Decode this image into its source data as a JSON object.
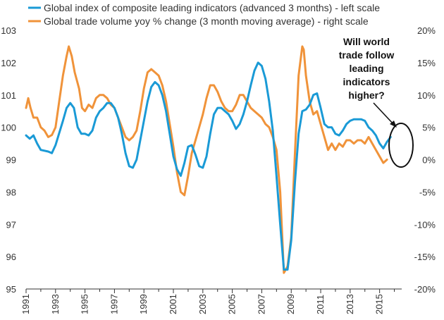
{
  "colors": {
    "leading_indicators": "#1a9ad6",
    "trade_volume": "#f0933a",
    "axis": "#333333"
  },
  "chart_data": {
    "type": "line",
    "title": "",
    "xlabel": "",
    "left_ylabel": "",
    "right_ylabel": "",
    "x_ticks": [
      "1991",
      "1993",
      "1995",
      "1997",
      "1999",
      "2001",
      "2003",
      "2005",
      "2007",
      "2009",
      "2011",
      "2013",
      "2015"
    ],
    "left_ticks": [
      "103",
      "102",
      "101",
      "100",
      "99",
      "98",
      "97",
      "96",
      "95"
    ],
    "right_ticks": [
      "20%",
      "15%",
      "10%",
      "5%",
      "0%",
      "-5%",
      "-10%",
      "-15%",
      "-20%"
    ],
    "xlim": [
      1991,
      2016.5
    ],
    "left_ylim": [
      95,
      103
    ],
    "right_ylim": [
      -20,
      20
    ],
    "grid": false,
    "legend_position": "top-left",
    "legend": [
      "Global index of composite leading indicators (advanced 3 months) - left scale",
      "Global trade volume yoy % change (3 month moving average) - right scale"
    ],
    "annotation": {
      "lines": [
        "Will world",
        "trade follow",
        "leading",
        "indicators",
        "higher?"
      ],
      "marker": "ellipse with arrow"
    },
    "series": [
      {
        "name": "Global index of composite leading indicators (advanced 3 months) - left scale",
        "axis": "left",
        "points": [
          [
            1991.0,
            99.75
          ],
          [
            1991.25,
            99.65
          ],
          [
            1991.5,
            99.75
          ],
          [
            1991.75,
            99.5
          ],
          [
            1992.0,
            99.3
          ],
          [
            1992.5,
            99.25
          ],
          [
            1992.75,
            99.2
          ],
          [
            1993.0,
            99.45
          ],
          [
            1993.5,
            100.2
          ],
          [
            1993.75,
            100.6
          ],
          [
            1994.0,
            100.75
          ],
          [
            1994.25,
            100.6
          ],
          [
            1994.5,
            100.0
          ],
          [
            1994.75,
            99.8
          ],
          [
            1995.0,
            99.8
          ],
          [
            1995.25,
            99.75
          ],
          [
            1995.5,
            99.9
          ],
          [
            1995.75,
            100.3
          ],
          [
            1996.0,
            100.5
          ],
          [
            1996.25,
            100.6
          ],
          [
            1996.5,
            100.75
          ],
          [
            1996.75,
            100.75
          ],
          [
            1997.0,
            100.6
          ],
          [
            1997.25,
            100.3
          ],
          [
            1997.5,
            99.8
          ],
          [
            1997.75,
            99.2
          ],
          [
            1998.0,
            98.8
          ],
          [
            1998.25,
            98.75
          ],
          [
            1998.5,
            99.0
          ],
          [
            1998.75,
            99.6
          ],
          [
            1999.0,
            100.2
          ],
          [
            1999.25,
            100.8
          ],
          [
            1999.5,
            101.25
          ],
          [
            1999.75,
            101.4
          ],
          [
            2000.0,
            101.3
          ],
          [
            2000.25,
            101.0
          ],
          [
            2000.5,
            100.5
          ],
          [
            2000.75,
            99.8
          ],
          [
            2001.0,
            99.1
          ],
          [
            2001.25,
            98.7
          ],
          [
            2001.5,
            98.5
          ],
          [
            2001.75,
            98.9
          ],
          [
            2002.0,
            99.4
          ],
          [
            2002.25,
            99.45
          ],
          [
            2002.5,
            99.15
          ],
          [
            2002.75,
            98.8
          ],
          [
            2003.0,
            98.75
          ],
          [
            2003.25,
            99.1
          ],
          [
            2003.5,
            99.8
          ],
          [
            2003.75,
            100.4
          ],
          [
            2004.0,
            100.6
          ],
          [
            2004.25,
            100.6
          ],
          [
            2004.5,
            100.5
          ],
          [
            2004.75,
            100.4
          ],
          [
            2005.0,
            100.2
          ],
          [
            2005.25,
            99.95
          ],
          [
            2005.5,
            100.1
          ],
          [
            2005.75,
            100.4
          ],
          [
            2006.0,
            100.8
          ],
          [
            2006.25,
            101.3
          ],
          [
            2006.5,
            101.75
          ],
          [
            2006.75,
            102.0
          ],
          [
            2007.0,
            101.9
          ],
          [
            2007.25,
            101.5
          ],
          [
            2007.5,
            100.8
          ],
          [
            2007.75,
            99.9
          ],
          [
            2008.0,
            98.5
          ],
          [
            2008.25,
            97.0
          ],
          [
            2008.5,
            95.6
          ],
          [
            2008.75,
            95.6
          ],
          [
            2009.0,
            96.5
          ],
          [
            2009.25,
            98.3
          ],
          [
            2009.5,
            99.8
          ],
          [
            2009.75,
            100.5
          ],
          [
            2010.0,
            100.55
          ],
          [
            2010.25,
            100.7
          ],
          [
            2010.5,
            101.0
          ],
          [
            2010.75,
            101.05
          ],
          [
            2011.0,
            100.6
          ],
          [
            2011.25,
            100.1
          ],
          [
            2011.5,
            100.0
          ],
          [
            2011.75,
            100.0
          ],
          [
            2012.0,
            99.8
          ],
          [
            2012.25,
            99.75
          ],
          [
            2012.5,
            99.9
          ],
          [
            2012.75,
            100.1
          ],
          [
            2013.0,
            100.2
          ],
          [
            2013.25,
            100.25
          ],
          [
            2013.5,
            100.25
          ],
          [
            2013.75,
            100.25
          ],
          [
            2014.0,
            100.2
          ],
          [
            2014.25,
            100.0
          ],
          [
            2014.5,
            99.9
          ],
          [
            2014.75,
            99.75
          ],
          [
            2015.0,
            99.5
          ],
          [
            2015.25,
            99.35
          ],
          [
            2015.5,
            99.55
          ],
          [
            2015.75,
            99.7
          ]
        ]
      },
      {
        "name": "Global trade volume yoy % change (3 month moving average) - right scale",
        "axis": "right",
        "points": [
          [
            1991.0,
            8.0
          ],
          [
            1991.15,
            9.5
          ],
          [
            1991.3,
            8.0
          ],
          [
            1991.5,
            6.5
          ],
          [
            1991.75,
            6.5
          ],
          [
            1992.0,
            5.0
          ],
          [
            1992.25,
            4.5
          ],
          [
            1992.5,
            3.5
          ],
          [
            1992.75,
            3.8
          ],
          [
            1993.0,
            5.0
          ],
          [
            1993.25,
            9.0
          ],
          [
            1993.5,
            13.0
          ],
          [
            1993.75,
            16.0
          ],
          [
            1993.9,
            17.5
          ],
          [
            1994.1,
            16.0
          ],
          [
            1994.3,
            13.5
          ],
          [
            1994.6,
            11.0
          ],
          [
            1994.8,
            8.0
          ],
          [
            1995.0,
            7.5
          ],
          [
            1995.25,
            8.5
          ],
          [
            1995.5,
            8.0
          ],
          [
            1995.75,
            9.5
          ],
          [
            1996.0,
            10.0
          ],
          [
            1996.25,
            10.0
          ],
          [
            1996.5,
            9.5
          ],
          [
            1996.75,
            8.5
          ],
          [
            1997.0,
            8.0
          ],
          [
            1997.25,
            6.5
          ],
          [
            1997.5,
            5.0
          ],
          [
            1997.75,
            3.5
          ],
          [
            1998.0,
            3.0
          ],
          [
            1998.25,
            3.5
          ],
          [
            1998.5,
            4.5
          ],
          [
            1998.75,
            7.5
          ],
          [
            1999.0,
            11.0
          ],
          [
            1999.25,
            13.5
          ],
          [
            1999.5,
            14.0
          ],
          [
            1999.75,
            13.5
          ],
          [
            2000.0,
            13.0
          ],
          [
            2000.25,
            11.5
          ],
          [
            2000.5,
            9.0
          ],
          [
            2000.75,
            5.5
          ],
          [
            2001.0,
            2.0
          ],
          [
            2001.25,
            -2.0
          ],
          [
            2001.5,
            -5.0
          ],
          [
            2001.75,
            -5.5
          ],
          [
            2002.0,
            -2.5
          ],
          [
            2002.25,
            1.0
          ],
          [
            2002.5,
            3.0
          ],
          [
            2002.75,
            5.0
          ],
          [
            2003.0,
            7.0
          ],
          [
            2003.25,
            9.5
          ],
          [
            2003.5,
            11.5
          ],
          [
            2003.75,
            11.5
          ],
          [
            2004.0,
            10.5
          ],
          [
            2004.25,
            9.0
          ],
          [
            2004.5,
            8.0
          ],
          [
            2004.75,
            7.5
          ],
          [
            2005.0,
            7.5
          ],
          [
            2005.25,
            8.5
          ],
          [
            2005.5,
            10.0
          ],
          [
            2005.75,
            10.0
          ],
          [
            2006.0,
            9.0
          ],
          [
            2006.25,
            8.0
          ],
          [
            2006.5,
            7.5
          ],
          [
            2006.75,
            7.0
          ],
          [
            2007.0,
            6.5
          ],
          [
            2007.25,
            5.5
          ],
          [
            2007.5,
            5.0
          ],
          [
            2007.75,
            3.5
          ],
          [
            2008.0,
            1.5
          ],
          [
            2008.25,
            -5.0
          ],
          [
            2008.5,
            -17.5
          ],
          [
            2008.75,
            -16.5
          ],
          [
            2009.0,
            -12.0
          ],
          [
            2009.25,
            1.0
          ],
          [
            2009.5,
            13.0
          ],
          [
            2009.75,
            17.5
          ],
          [
            2009.85,
            17.0
          ],
          [
            2010.0,
            13.0
          ],
          [
            2010.25,
            9.0
          ],
          [
            2010.5,
            7.0
          ],
          [
            2010.75,
            7.5
          ],
          [
            2011.0,
            5.5
          ],
          [
            2011.25,
            3.5
          ],
          [
            2011.5,
            1.5
          ],
          [
            2011.75,
            2.5
          ],
          [
            2012.0,
            1.5
          ],
          [
            2012.25,
            2.5
          ],
          [
            2012.5,
            2.0
          ],
          [
            2012.75,
            3.0
          ],
          [
            2013.0,
            3.0
          ],
          [
            2013.25,
            2.5
          ],
          [
            2013.5,
            3.0
          ],
          [
            2013.75,
            3.0
          ],
          [
            2014.0,
            2.5
          ],
          [
            2014.25,
            3.5
          ],
          [
            2014.5,
            2.5
          ],
          [
            2014.75,
            1.5
          ],
          [
            2015.0,
            0.5
          ],
          [
            2015.25,
            -0.5
          ],
          [
            2015.5,
            0.0
          ]
        ]
      }
    ]
  }
}
